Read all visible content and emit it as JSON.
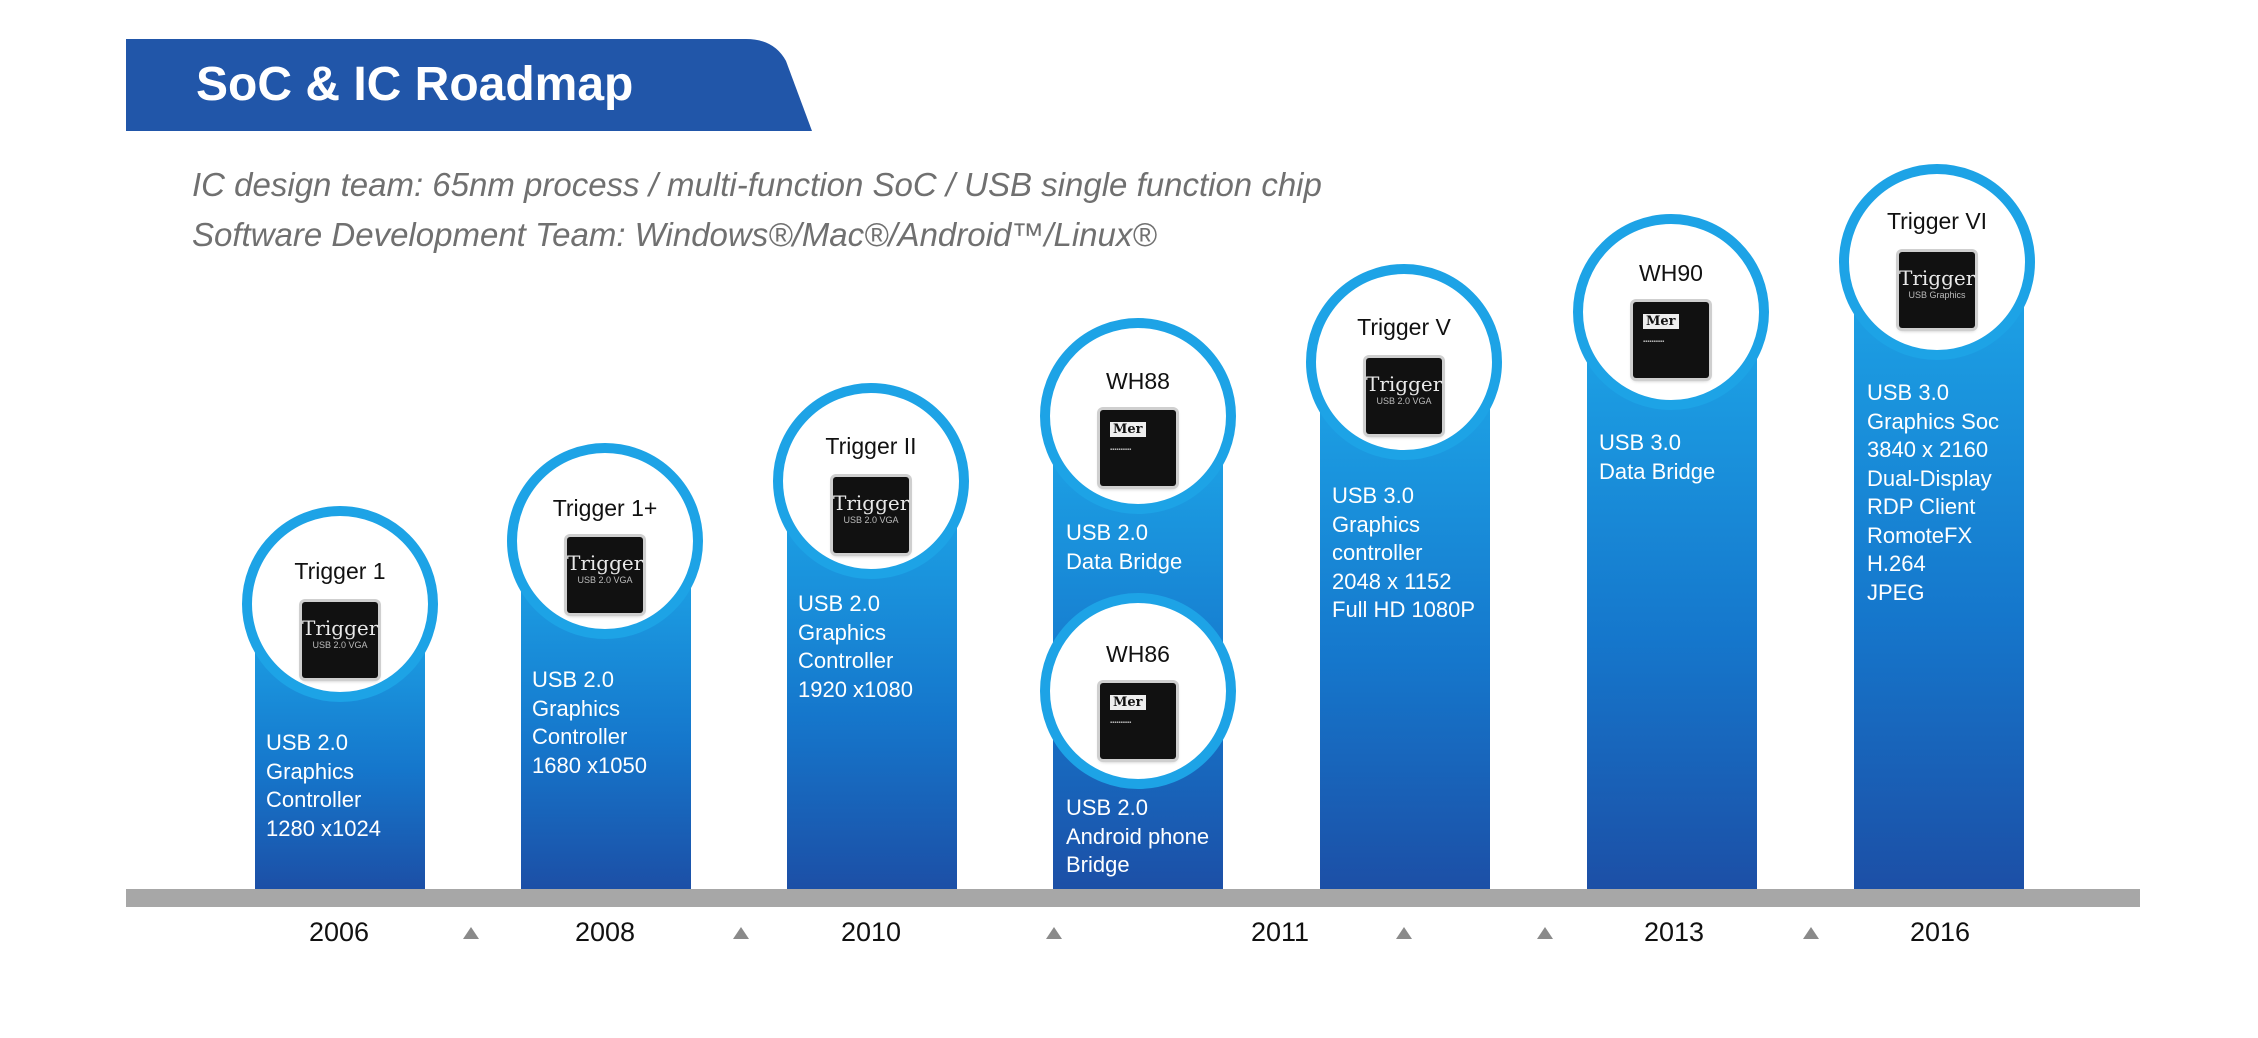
{
  "header": {
    "title": "SoC & IC Roadmap",
    "subtitle_1": "IC design team: 65nm process / multi-function SoC / USB single function chip",
    "subtitle_2": "Software Development Team: Windows®/Mac®/Android™/Linux®"
  },
  "colors": {
    "header_band": "#2156a9",
    "bar_top": "#1da3e6",
    "bar_bottom": "#1c4fa6",
    "circle_ring": "#1da3e6",
    "timeline": "#a7a7a7"
  },
  "products": [
    {
      "name": "Trigger 1",
      "chip_mark": "Trigger",
      "chip_sub": "USB 2.0 VGA",
      "desc": [
        "USB 2.0",
        "Graphics",
        "Controller",
        "1280 x1024"
      ]
    },
    {
      "name": "Trigger 1+",
      "chip_mark": "Trigger",
      "chip_sub": "USB 2.0 VGA",
      "desc": [
        "USB 2.0",
        "Graphics",
        "Controller",
        "1680 x1050"
      ]
    },
    {
      "name": "Trigger II",
      "chip_mark": "Trigger",
      "chip_sub": "USB 2.0 VGA",
      "desc": [
        "USB 2.0",
        "Graphics",
        "Controller",
        "1920 x1080"
      ]
    },
    {
      "name": "WH88",
      "chip_mark": "Mer",
      "desc": [
        "USB 2.0",
        "Data Bridge"
      ]
    },
    {
      "name": "WH86",
      "chip_mark": "Mer",
      "desc": [
        "USB 2.0",
        "Android phone",
        "Bridge"
      ]
    },
    {
      "name": "Trigger V",
      "chip_mark": "Trigger",
      "chip_sub": "USB 2.0 VGA",
      "desc": [
        "USB 3.0",
        "Graphics",
        "controller",
        "2048 x 1152",
        "Full HD 1080P"
      ]
    },
    {
      "name": "WH90",
      "chip_mark": "Mer",
      "desc": [
        "USB 3.0",
        "Data Bridge"
      ]
    },
    {
      "name": "Trigger VI",
      "chip_mark": "Trigger",
      "chip_sub": "USB Graphics",
      "desc": [
        "USB 3.0",
        "Graphics Soc",
        "3840 x 2160",
        "Dual-Display",
        "RDP Client",
        "RomoteFX",
        "H.264",
        "JPEG"
      ]
    }
  ],
  "timeline": {
    "years": [
      "2006",
      "2008",
      "2010",
      "2011",
      "2013",
      "2016"
    ]
  }
}
